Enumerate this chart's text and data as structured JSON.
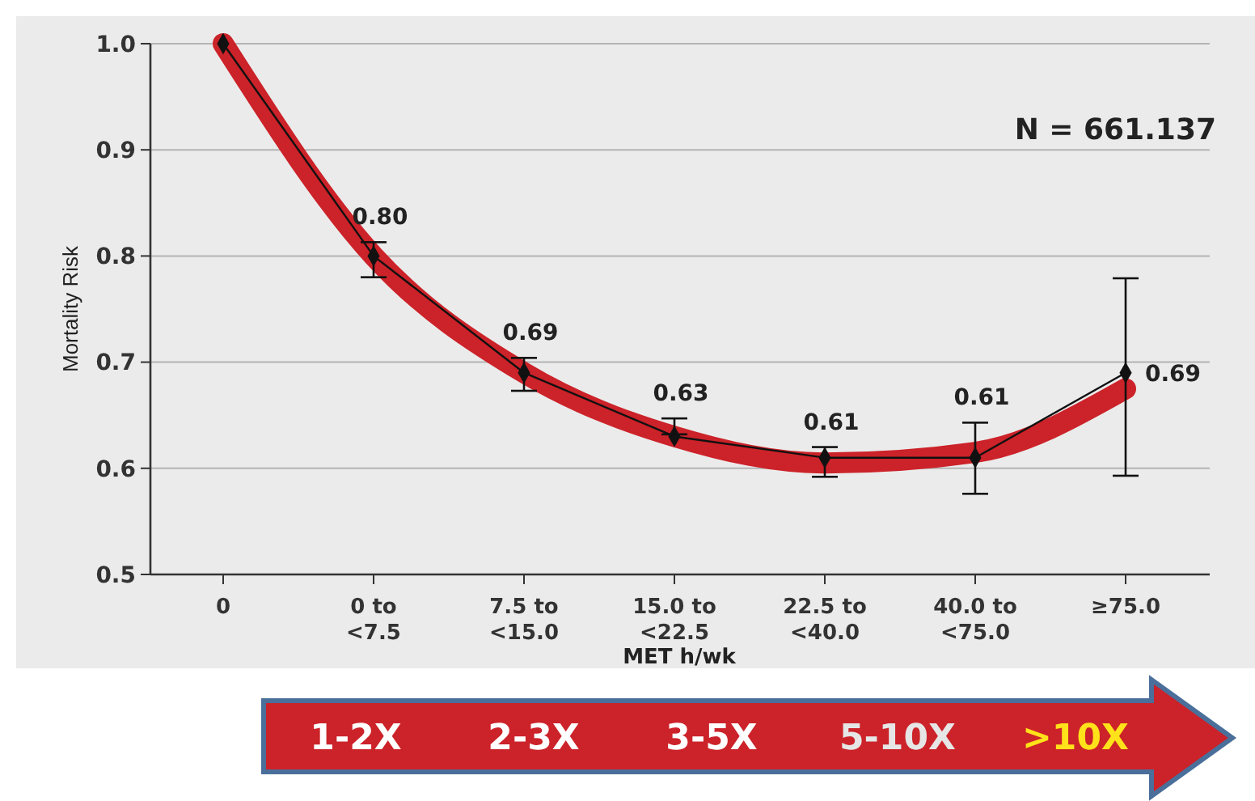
{
  "chart_data": {
    "type": "line",
    "xlabel": "MET h/wk",
    "ylabel": "Mortality Risk",
    "categories": [
      "0",
      "0 to\n<7.5",
      "7.5 to\n<15.0",
      "15.0 to\n<22.5",
      "22.5 to\n<40.0",
      "40.0 to\n<75.0",
      "≥75.0"
    ],
    "series": [
      {
        "color": "#cc2229",
        "values": [
          1.0,
          0.8,
          0.69,
          0.63,
          0.605,
          0.615,
          0.675
        ]
      },
      {
        "color": "#111111",
        "marker": "diamond",
        "values": [
          1.0,
          0.8,
          0.69,
          0.63,
          0.61,
          0.61,
          0.69
        ],
        "errors": [
          null,
          [
            0.78,
            0.813
          ],
          [
            0.673,
            0.704
          ],
          [
            0.632,
            0.647
          ],
          [
            0.592,
            0.62
          ],
          [
            0.576,
            0.643
          ],
          [
            0.593,
            0.779
          ]
        ],
        "value_labels": [
          null,
          "0.80",
          "0.69",
          "0.63",
          "0.61",
          "0.61",
          "0.69"
        ]
      }
    ],
    "ylim": [
      0.5,
      1.0
    ],
    "yticks": [
      0.5,
      0.6,
      0.7,
      0.8,
      0.9,
      {
        "value": 1.0,
        "label": "1.0"
      }
    ],
    "grid": "y",
    "annotations": [
      "N = 661.137",
      "1-2X",
      "2-3X",
      "3-5X",
      "5-10X",
      ">10X"
    ]
  }
}
